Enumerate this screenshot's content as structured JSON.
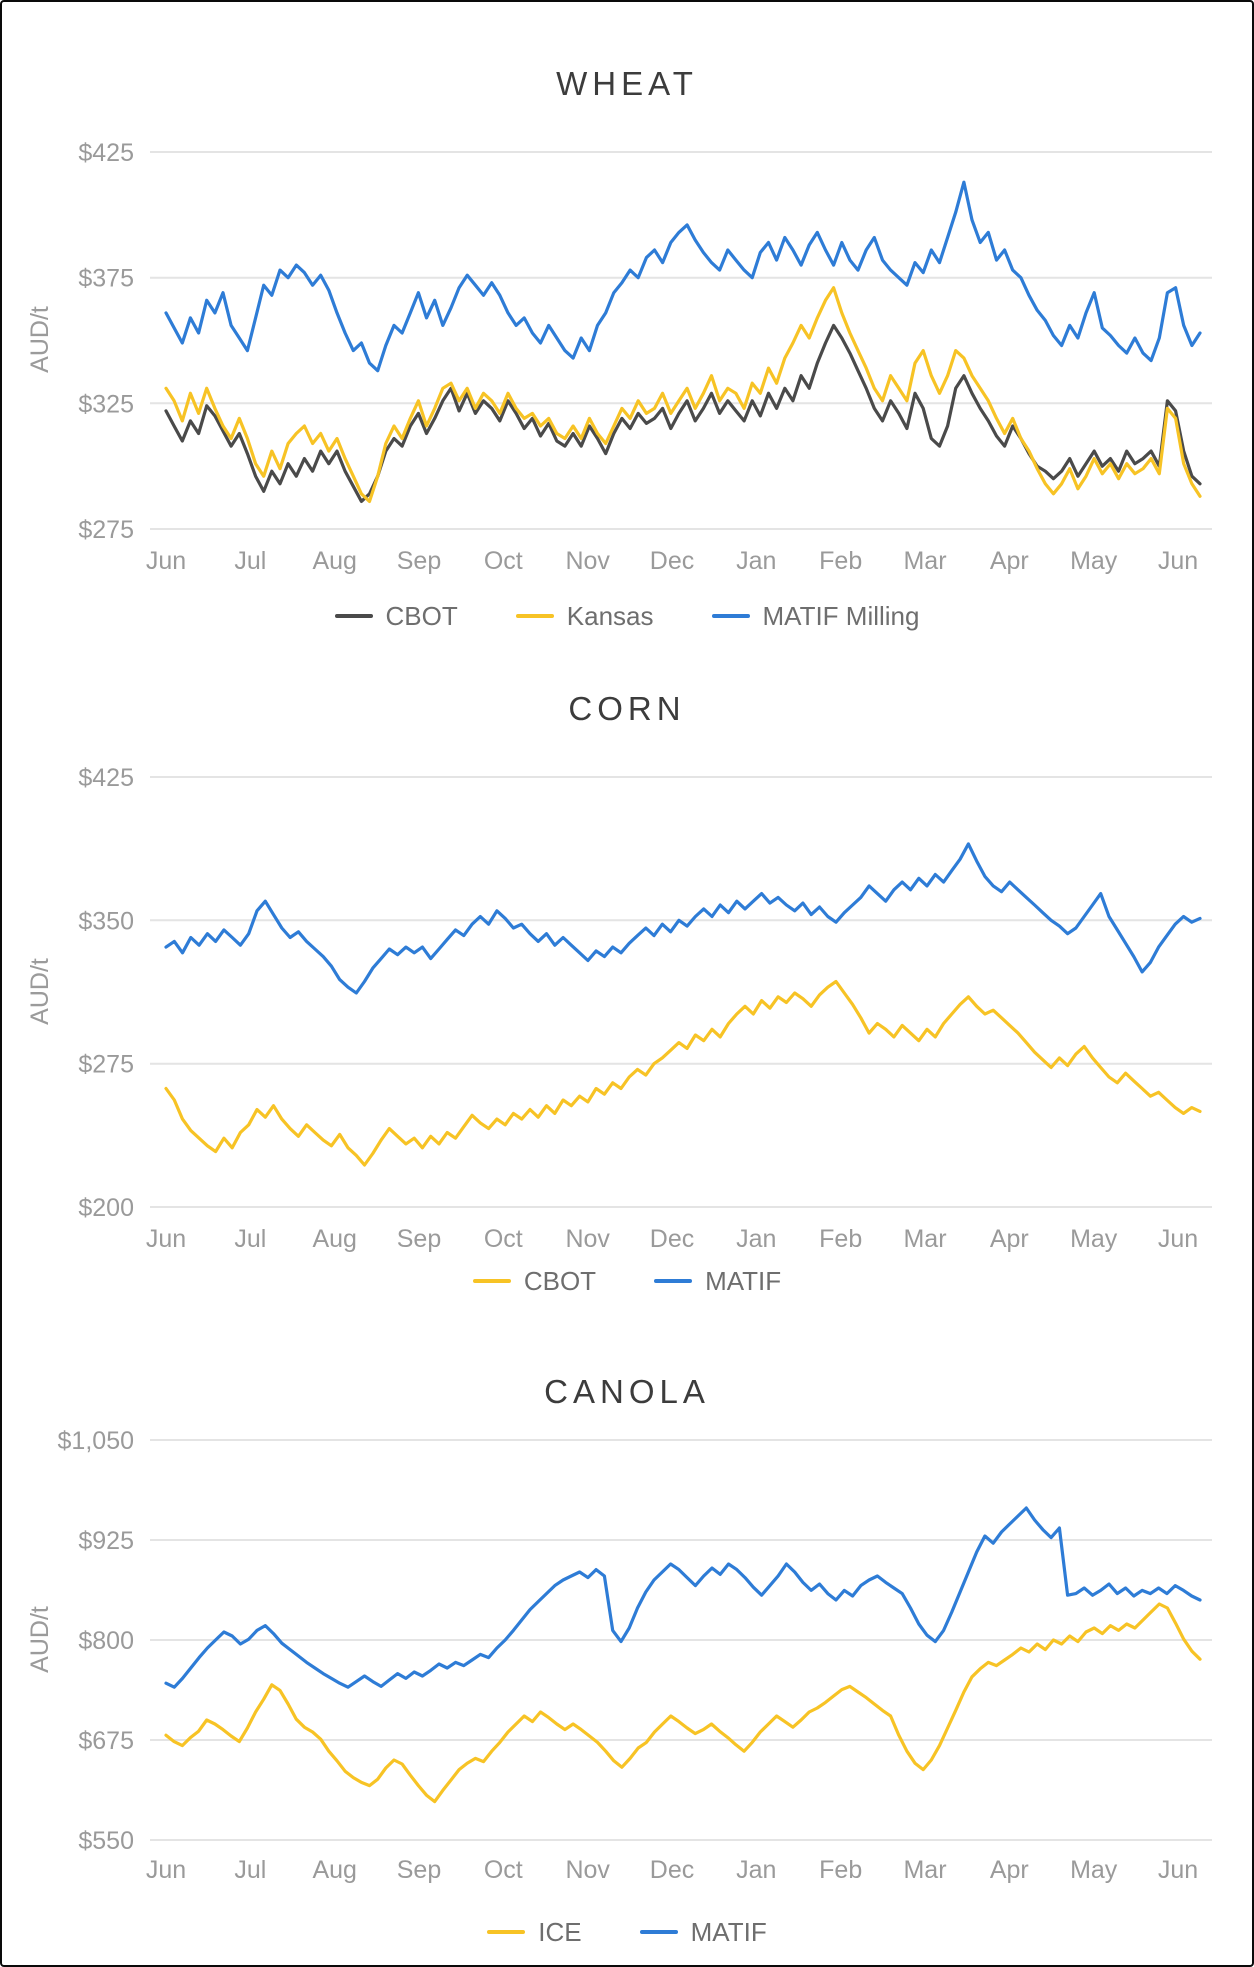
{
  "page": {
    "background_color": "#ffffff",
    "border_color": "#0a0a0a",
    "accent_yellow": "#F7C325",
    "accent_blue": "#2E7CD6",
    "accent_dark": "#4A4A4A"
  },
  "chart_data": [
    {
      "type": "line",
      "title": "WHEAT",
      "ylabel": "AUD/t",
      "xlabel": "",
      "grid": "horizontal-only",
      "legend_position": "bottom",
      "x_tick_labels": [
        "Jun",
        "Jul",
        "Aug",
        "Sep",
        "Oct",
        "Nov",
        "Dec",
        "Jan",
        "Feb",
        "Mar",
        "Apr",
        "May",
        "Jun"
      ],
      "y_ticks": [
        425,
        375,
        325,
        275
      ],
      "y_tick_labels": [
        "$425",
        "$375",
        "$325",
        "$275"
      ],
      "ylim": [
        275,
        425
      ],
      "series": [
        {
          "name": "CBOT",
          "color": "#4A4A4A",
          "values": [
            322,
            316,
            310,
            318,
            313,
            324,
            320,
            314,
            308,
            313,
            305,
            296,
            290,
            298,
            293,
            301,
            296,
            303,
            298,
            306,
            301,
            306,
            298,
            292,
            286,
            289,
            296,
            306,
            311,
            308,
            316,
            321,
            313,
            319,
            326,
            331,
            322,
            329,
            321,
            326,
            323,
            318,
            326,
            321,
            315,
            319,
            312,
            317,
            310,
            308,
            313,
            308,
            316,
            311,
            305,
            313,
            319,
            315,
            321,
            317,
            319,
            323,
            315,
            321,
            326,
            318,
            323,
            329,
            321,
            326,
            322,
            318,
            326,
            320,
            329,
            323,
            331,
            326,
            336,
            331,
            341,
            349,
            356,
            351,
            345,
            338,
            331,
            323,
            318,
            326,
            321,
            315,
            329,
            323,
            311,
            308,
            316,
            331,
            336,
            329,
            323,
            318,
            312,
            308,
            316,
            311,
            305,
            300,
            298,
            295,
            298,
            303,
            296,
            301,
            306,
            300,
            303,
            298,
            306,
            301,
            303,
            306,
            300,
            326,
            322,
            306,
            296,
            293
          ]
        },
        {
          "name": "Kansas",
          "color": "#F7C325",
          "values": [
            331,
            326,
            318,
            329,
            321,
            331,
            323,
            316,
            311,
            319,
            311,
            301,
            296,
            306,
            299,
            309,
            313,
            316,
            309,
            313,
            306,
            311,
            303,
            296,
            289,
            286,
            296,
            309,
            316,
            311,
            319,
            326,
            316,
            323,
            331,
            333,
            326,
            331,
            323,
            329,
            326,
            321,
            329,
            323,
            319,
            321,
            316,
            319,
            313,
            311,
            316,
            311,
            319,
            313,
            309,
            316,
            323,
            319,
            326,
            321,
            323,
            329,
            321,
            326,
            331,
            323,
            329,
            336,
            326,
            331,
            329,
            323,
            333,
            329,
            339,
            333,
            343,
            349,
            356,
            351,
            359,
            366,
            371,
            361,
            353,
            346,
            339,
            331,
            326,
            336,
            331,
            326,
            341,
            346,
            336,
            329,
            336,
            346,
            343,
            336,
            331,
            326,
            319,
            313,
            319,
            311,
            306,
            299,
            293,
            289,
            293,
            299,
            291,
            296,
            303,
            297,
            301,
            295,
            301,
            297,
            299,
            303,
            297,
            323,
            319,
            301,
            293,
            288
          ]
        },
        {
          "name": "MATIF Milling",
          "color": "#2E7CD6",
          "values": [
            361,
            355,
            349,
            359,
            353,
            366,
            361,
            369,
            356,
            351,
            346,
            359,
            372,
            368,
            378,
            375,
            380,
            377,
            372,
            376,
            370,
            361,
            353,
            346,
            349,
            341,
            338,
            348,
            356,
            353,
            361,
            369,
            359,
            366,
            356,
            363,
            371,
            376,
            372,
            368,
            373,
            368,
            361,
            356,
            359,
            353,
            349,
            356,
            351,
            346,
            343,
            351,
            346,
            356,
            361,
            369,
            373,
            378,
            375,
            383,
            386,
            381,
            389,
            393,
            396,
            390,
            385,
            381,
            378,
            386,
            382,
            378,
            375,
            385,
            389,
            382,
            391,
            386,
            380,
            388,
            393,
            386,
            380,
            389,
            382,
            378,
            386,
            391,
            382,
            378,
            375,
            372,
            381,
            377,
            386,
            381,
            391,
            401,
            413,
            398,
            389,
            393,
            382,
            386,
            378,
            375,
            368,
            362,
            358,
            352,
            348,
            356,
            351,
            361,
            369,
            355,
            352,
            348,
            345,
            351,
            345,
            342,
            351,
            369,
            371,
            356,
            348,
            353
          ]
        }
      ]
    },
    {
      "type": "line",
      "title": "CORN",
      "ylabel": "AUD/t",
      "xlabel": "",
      "grid": "horizontal-only",
      "legend_position": "bottom",
      "x_tick_labels": [
        "Jun",
        "Jul",
        "Aug",
        "Sep",
        "Oct",
        "Nov",
        "Dec",
        "Jan",
        "Feb",
        "Mar",
        "Apr",
        "May",
        "Jun"
      ],
      "y_ticks": [
        425,
        350,
        275,
        200
      ],
      "y_tick_labels": [
        "$425",
        "$350",
        "$275",
        "$200"
      ],
      "ylim": [
        200,
        425
      ],
      "series": [
        {
          "name": "CBOT",
          "color": "#F7C325",
          "values": [
            262,
            256,
            246,
            240,
            236,
            232,
            229,
            236,
            231,
            239,
            243,
            251,
            247,
            253,
            246,
            241,
            237,
            243,
            239,
            235,
            232,
            238,
            231,
            227,
            222,
            228,
            235,
            241,
            237,
            233,
            236,
            231,
            237,
            233,
            239,
            236,
            242,
            248,
            244,
            241,
            246,
            243,
            249,
            246,
            251,
            247,
            253,
            249,
            256,
            253,
            258,
            255,
            262,
            259,
            265,
            262,
            268,
            272,
            269,
            275,
            278,
            282,
            286,
            283,
            290,
            287,
            293,
            289,
            296,
            301,
            305,
            301,
            308,
            304,
            310,
            307,
            312,
            309,
            305,
            311,
            315,
            318,
            312,
            306,
            299,
            291,
            296,
            293,
            289,
            295,
            291,
            287,
            293,
            289,
            296,
            301,
            306,
            310,
            305,
            301,
            303,
            299,
            295,
            291,
            286,
            281,
            277,
            273,
            278,
            274,
            280,
            284,
            278,
            273,
            268,
            265,
            270,
            266,
            262,
            258,
            260,
            256,
            252,
            249,
            252,
            250
          ]
        },
        {
          "name": "MATIF",
          "color": "#2E7CD6",
          "values": [
            336,
            339,
            333,
            341,
            337,
            343,
            339,
            345,
            341,
            337,
            343,
            355,
            360,
            353,
            346,
            341,
            344,
            339,
            335,
            331,
            326,
            319,
            315,
            312,
            318,
            325,
            330,
            335,
            332,
            336,
            333,
            336,
            330,
            335,
            340,
            345,
            342,
            348,
            352,
            348,
            355,
            351,
            346,
            348,
            343,
            339,
            343,
            337,
            341,
            337,
            333,
            329,
            334,
            331,
            336,
            333,
            338,
            342,
            346,
            342,
            348,
            344,
            350,
            347,
            352,
            356,
            352,
            358,
            354,
            360,
            356,
            360,
            364,
            359,
            362,
            358,
            355,
            359,
            353,
            357,
            352,
            349,
            354,
            358,
            362,
            368,
            364,
            360,
            366,
            370,
            366,
            372,
            368,
            374,
            370,
            376,
            382,
            390,
            381,
            373,
            368,
            365,
            370,
            366,
            362,
            358,
            354,
            350,
            347,
            343,
            346,
            352,
            358,
            364,
            352,
            345,
            338,
            331,
            323,
            328,
            336,
            342,
            348,
            352,
            349,
            351
          ]
        }
      ]
    },
    {
      "type": "line",
      "title": "CANOLA",
      "ylabel": "AUD/t",
      "xlabel": "",
      "grid": "horizontal-only",
      "legend_position": "bottom",
      "x_tick_labels": [
        "Jun",
        "Jul",
        "Aug",
        "Sep",
        "Oct",
        "Nov",
        "Dec",
        "Jan",
        "Feb",
        "Mar",
        "Apr",
        "May",
        "Jun"
      ],
      "y_ticks": [
        1050,
        925,
        800,
        675,
        550
      ],
      "y_tick_labels": [
        "$1,050",
        "$925",
        "$800",
        "$675",
        "$550"
      ],
      "ylim": [
        550,
        1050
      ],
      "series": [
        {
          "name": "ICE",
          "color": "#F7C325",
          "values": [
            681,
            673,
            668,
            678,
            686,
            700,
            695,
            688,
            680,
            673,
            690,
            710,
            726,
            744,
            737,
            720,
            701,
            691,
            685,
            676,
            661,
            649,
            636,
            628,
            622,
            618,
            626,
            640,
            650,
            645,
            631,
            618,
            606,
            598,
            612,
            625,
            638,
            646,
            652,
            648,
            661,
            672,
            685,
            695,
            705,
            698,
            710,
            703,
            695,
            688,
            695,
            688,
            680,
            672,
            661,
            649,
            641,
            652,
            665,
            672,
            685,
            695,
            705,
            698,
            690,
            683,
            688,
            695,
            686,
            678,
            669,
            661,
            672,
            685,
            695,
            705,
            698,
            691,
            700,
            710,
            715,
            722,
            730,
            738,
            742,
            735,
            728,
            720,
            712,
            705,
            681,
            661,
            646,
            638,
            650,
            668,
            690,
            712,
            735,
            754,
            764,
            772,
            768,
            775,
            782,
            790,
            785,
            795,
            788,
            800,
            795,
            805,
            798,
            810,
            815,
            808,
            818,
            812,
            820,
            815,
            825,
            835,
            845,
            840,
            821,
            801,
            786,
            776
          ]
        },
        {
          "name": "MATIF",
          "color": "#2E7CD6",
          "values": [
            746,
            741,
            752,
            765,
            778,
            790,
            800,
            810,
            805,
            795,
            801,
            812,
            818,
            808,
            796,
            788,
            780,
            772,
            765,
            758,
            752,
            746,
            741,
            748,
            755,
            748,
            742,
            750,
            758,
            752,
            760,
            755,
            762,
            770,
            765,
            772,
            768,
            775,
            782,
            778,
            790,
            800,
            812,
            825,
            838,
            848,
            858,
            868,
            875,
            880,
            885,
            878,
            888,
            880,
            812,
            798,
            815,
            840,
            860,
            875,
            885,
            895,
            888,
            878,
            868,
            880,
            890,
            882,
            895,
            888,
            878,
            866,
            856,
            868,
            880,
            895,
            885,
            872,
            862,
            870,
            858,
            850,
            862,
            855,
            868,
            875,
            880,
            872,
            865,
            858,
            840,
            820,
            806,
            798,
            812,
            835,
            860,
            885,
            910,
            930,
            921,
            935,
            945,
            955,
            965,
            950,
            938,
            928,
            940,
            856,
            858,
            865,
            856,
            862,
            870,
            858,
            865,
            855,
            862,
            858,
            865,
            858,
            868,
            862,
            855,
            850
          ]
        }
      ]
    }
  ]
}
